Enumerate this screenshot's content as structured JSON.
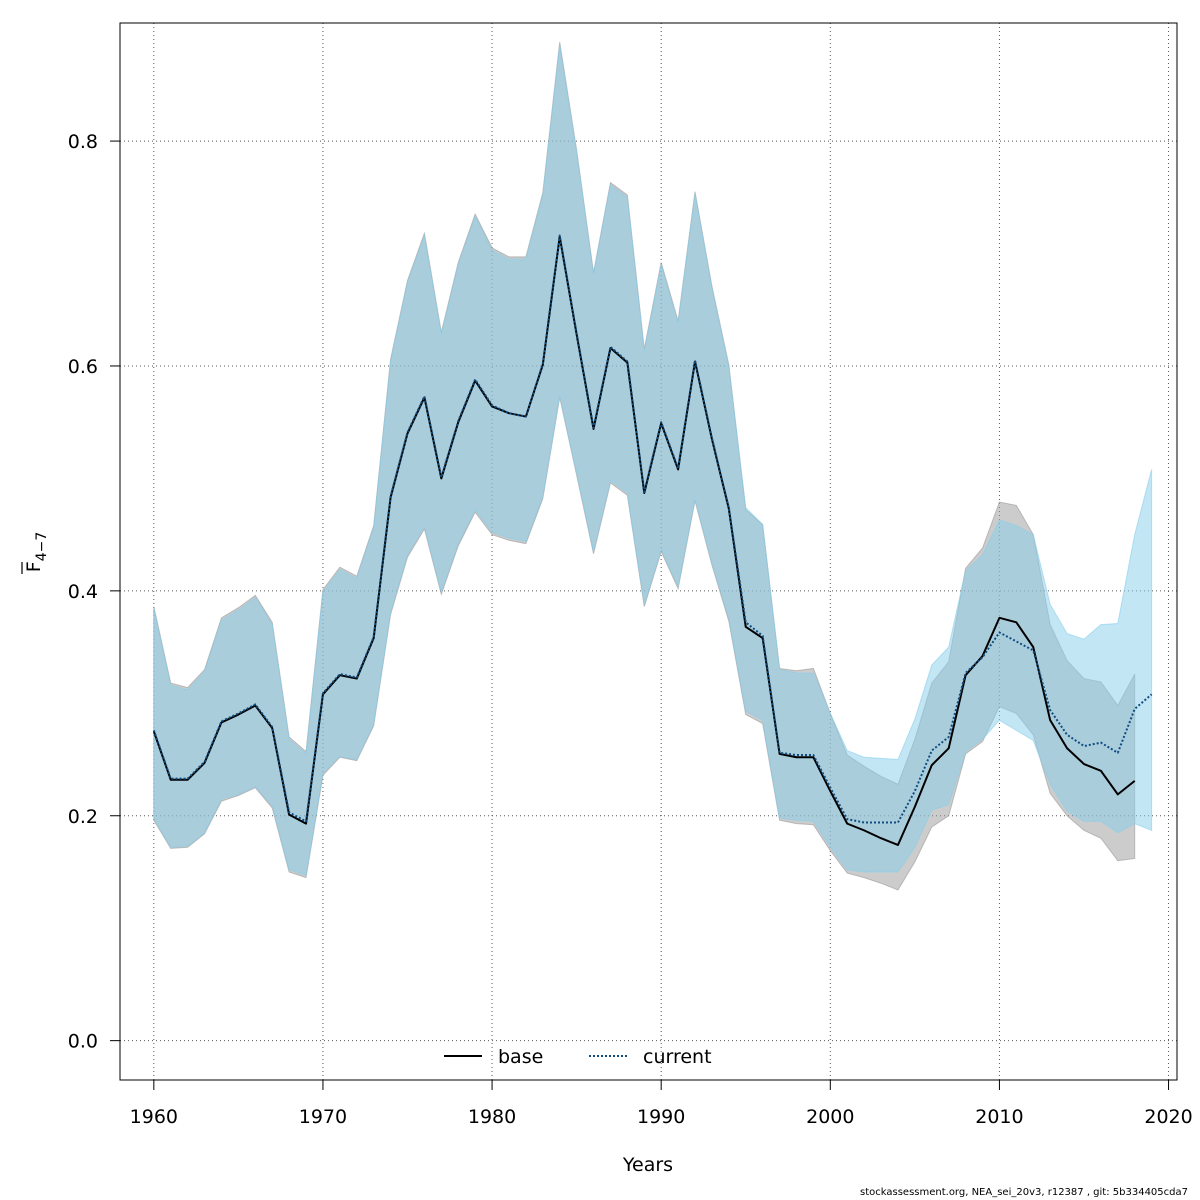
{
  "chart_data": {
    "type": "line",
    "xlabel": "Years",
    "ylabel_main": "F",
    "ylabel_sub": "4−7",
    "xlim": [
      1958,
      2020.5
    ],
    "ylim": [
      -0.035,
      0.905
    ],
    "x_ticks": [
      1960,
      1970,
      1980,
      1990,
      2000,
      2010,
      2020
    ],
    "y_ticks": [
      0.0,
      0.2,
      0.4,
      0.6,
      0.8
    ],
    "x_tick_labels": [
      "1960",
      "1970",
      "1980",
      "1990",
      "2000",
      "2010",
      "2020"
    ],
    "y_tick_labels": [
      "0.0",
      "0.2",
      "0.4",
      "0.6",
      "0.8"
    ],
    "grid": true,
    "legend_position": "bottom-center",
    "legend": [
      {
        "name": "base",
        "style": "solid",
        "color": "#000000"
      },
      {
        "name": "current",
        "style": "dotted",
        "color": "#0f4c81"
      }
    ],
    "series": [
      {
        "name": "base",
        "color": "#000000",
        "band_color": "#999999",
        "x": [
          1960,
          1961,
          1962,
          1963,
          1964,
          1965,
          1966,
          1967,
          1968,
          1969,
          1970,
          1971,
          1972,
          1973,
          1974,
          1975,
          1976,
          1977,
          1978,
          1979,
          1980,
          1981,
          1982,
          1983,
          1984,
          1985,
          1986,
          1987,
          1988,
          1989,
          1990,
          1991,
          1992,
          1993,
          1994,
          1995,
          1996,
          1997,
          1998,
          1999,
          2000,
          2001,
          2002,
          2003,
          2004,
          2005,
          2006,
          2007,
          2008,
          2009,
          2010,
          2011,
          2012,
          2013,
          2014,
          2015,
          2016,
          2017,
          2018
        ],
        "y": [
          0.275,
          0.232,
          0.232,
          0.247,
          0.283,
          0.29,
          0.298,
          0.278,
          0.201,
          0.193,
          0.308,
          0.325,
          0.322,
          0.358,
          0.483,
          0.54,
          0.572,
          0.5,
          0.55,
          0.587,
          0.564,
          0.558,
          0.555,
          0.601,
          0.715,
          0.628,
          0.544,
          0.616,
          0.603,
          0.487,
          0.549,
          0.508,
          0.604,
          0.535,
          0.473,
          0.368,
          0.358,
          0.255,
          0.252,
          0.252,
          0.222,
          0.193,
          0.187,
          0.18,
          0.174,
          0.208,
          0.245,
          0.26,
          0.325,
          0.342,
          0.376,
          0.372,
          0.35,
          0.285,
          0.26,
          0.246,
          0.24,
          0.219,
          0.231
        ],
        "lower": [
          0.196,
          0.171,
          0.172,
          0.184,
          0.213,
          0.218,
          0.225,
          0.207,
          0.15,
          0.145,
          0.236,
          0.252,
          0.249,
          0.28,
          0.379,
          0.43,
          0.455,
          0.397,
          0.44,
          0.47,
          0.45,
          0.445,
          0.442,
          0.482,
          0.572,
          0.503,
          0.433,
          0.496,
          0.485,
          0.386,
          0.435,
          0.402,
          0.48,
          0.423,
          0.373,
          0.29,
          0.282,
          0.196,
          0.193,
          0.192,
          0.169,
          0.149,
          0.145,
          0.14,
          0.134,
          0.159,
          0.19,
          0.2,
          0.255,
          0.266,
          0.297,
          0.291,
          0.272,
          0.22,
          0.2,
          0.187,
          0.18,
          0.16,
          0.162
        ],
        "upper": [
          0.386,
          0.318,
          0.314,
          0.33,
          0.376,
          0.385,
          0.396,
          0.372,
          0.27,
          0.257,
          0.401,
          0.421,
          0.413,
          0.458,
          0.606,
          0.676,
          0.718,
          0.63,
          0.692,
          0.735,
          0.705,
          0.697,
          0.697,
          0.754,
          0.888,
          0.792,
          0.683,
          0.763,
          0.752,
          0.615,
          0.692,
          0.64,
          0.755,
          0.671,
          0.601,
          0.472,
          0.459,
          0.331,
          0.329,
          0.331,
          0.291,
          0.254,
          0.244,
          0.235,
          0.228,
          0.268,
          0.318,
          0.337,
          0.42,
          0.438,
          0.479,
          0.476,
          0.45,
          0.37,
          0.338,
          0.322,
          0.319,
          0.298,
          0.326
        ]
      },
      {
        "name": "current",
        "color": "#0f4c81",
        "band_color": "#87ceeb",
        "x": [
          1960,
          1961,
          1962,
          1963,
          1964,
          1965,
          1966,
          1967,
          1968,
          1969,
          1970,
          1971,
          1972,
          1973,
          1974,
          1975,
          1976,
          1977,
          1978,
          1979,
          1980,
          1981,
          1982,
          1983,
          1984,
          1985,
          1986,
          1987,
          1988,
          1989,
          1990,
          1991,
          1992,
          1993,
          1994,
          1995,
          1996,
          1997,
          1998,
          1999,
          2000,
          2001,
          2002,
          2003,
          2004,
          2005,
          2006,
          2007,
          2008,
          2009,
          2010,
          2011,
          2012,
          2013,
          2014,
          2015,
          2016,
          2017,
          2018,
          2019
        ],
        "y": [
          0.276,
          0.233,
          0.233,
          0.248,
          0.284,
          0.291,
          0.299,
          0.279,
          0.203,
          0.195,
          0.309,
          0.326,
          0.323,
          0.359,
          0.484,
          0.541,
          0.573,
          0.501,
          0.551,
          0.588,
          0.565,
          0.558,
          0.555,
          0.602,
          0.716,
          0.629,
          0.545,
          0.617,
          0.604,
          0.488,
          0.55,
          0.509,
          0.605,
          0.536,
          0.474,
          0.372,
          0.36,
          0.256,
          0.254,
          0.254,
          0.225,
          0.197,
          0.194,
          0.194,
          0.194,
          0.222,
          0.258,
          0.27,
          0.327,
          0.341,
          0.363,
          0.355,
          0.347,
          0.294,
          0.272,
          0.262,
          0.265,
          0.256,
          0.295,
          0.308
        ],
        "lower": [
          0.198,
          0.172,
          0.173,
          0.185,
          0.215,
          0.219,
          0.226,
          0.209,
          0.152,
          0.147,
          0.238,
          0.253,
          0.25,
          0.282,
          0.381,
          0.432,
          0.457,
          0.399,
          0.442,
          0.472,
          0.452,
          0.447,
          0.444,
          0.484,
          0.574,
          0.505,
          0.435,
          0.498,
          0.487,
          0.388,
          0.437,
          0.404,
          0.482,
          0.425,
          0.376,
          0.293,
          0.285,
          0.198,
          0.196,
          0.195,
          0.172,
          0.152,
          0.15,
          0.15,
          0.15,
          0.172,
          0.205,
          0.21,
          0.257,
          0.268,
          0.285,
          0.276,
          0.267,
          0.228,
          0.204,
          0.195,
          0.195,
          0.185,
          0.193,
          0.187
        ],
        "upper": [
          0.384,
          0.316,
          0.312,
          0.328,
          0.374,
          0.383,
          0.394,
          0.37,
          0.268,
          0.255,
          0.399,
          0.419,
          0.411,
          0.456,
          0.604,
          0.674,
          0.716,
          0.628,
          0.69,
          0.733,
          0.703,
          0.695,
          0.695,
          0.752,
          0.885,
          0.79,
          0.681,
          0.761,
          0.75,
          0.613,
          0.69,
          0.638,
          0.753,
          0.669,
          0.599,
          0.474,
          0.459,
          0.33,
          0.327,
          0.327,
          0.291,
          0.258,
          0.252,
          0.251,
          0.25,
          0.286,
          0.334,
          0.35,
          0.418,
          0.432,
          0.463,
          0.458,
          0.45,
          0.388,
          0.362,
          0.357,
          0.37,
          0.371,
          0.45,
          0.508
        ]
      }
    ]
  },
  "footer": {
    "text": "stockassessment.org, NEA_sei_20v3, r12387 , git: 5b334405cda7"
  }
}
